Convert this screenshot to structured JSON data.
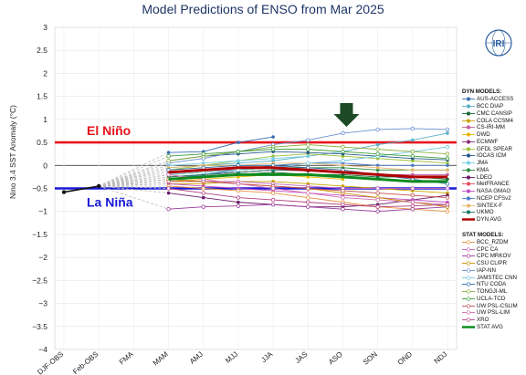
{
  "title": "Model Predictions of ENSO from Mar 2025",
  "chart_data": {
    "type": "line",
    "title": "Model Predictions of ENSO from Mar 2025",
    "ylabel": "Nino 3.4 SST Anomaly (°C)",
    "xlabel": "",
    "ylim": [
      -4,
      3
    ],
    "yticks": [
      "3",
      "2.5",
      "2",
      "1.5",
      "1",
      "0.5",
      "0",
      "−0.5",
      "−1",
      "−1.5",
      "−2",
      "−2.5",
      "−3",
      "−3.5",
      "−4"
    ],
    "categories": [
      "DJF-OBS",
      "Feb-OBS",
      "FMA",
      "MAM",
      "AMJ",
      "MJJ",
      "JJA",
      "JAS",
      "ASO",
      "SON",
      "OND",
      "NDJ"
    ],
    "thresholds": [
      {
        "name": "El Niño",
        "value": 0.5,
        "color": "#e8141b"
      },
      {
        "name": "La Niña",
        "value": -0.5,
        "color": "#1a18d6"
      }
    ],
    "observed": {
      "x": [
        0,
        1
      ],
      "values": [
        -0.58,
        -0.45
      ]
    },
    "dyn_header": "DYN MODELS:",
    "stat_header": "STAT MODELS:",
    "series": [
      {
        "name": "AUS-ACCESS",
        "group": "dyn",
        "color": "#3a6fb0",
        "values": [
          null,
          null,
          null,
          0.28,
          0.3,
          0.5,
          0.62,
          null,
          null,
          null,
          null,
          null
        ]
      },
      {
        "name": "BCC DIAP",
        "group": "dyn",
        "color": "#5ab2c8",
        "values": [
          null,
          null,
          null,
          -0.05,
          0.0,
          0.05,
          0.1,
          0.2,
          0.3,
          0.45,
          0.55,
          0.7
        ]
      },
      {
        "name": "CMC CANSIP",
        "group": "dyn",
        "color": "#1a6b3a",
        "values": [
          null,
          null,
          null,
          -0.3,
          -0.25,
          -0.2,
          -0.15,
          -0.2,
          -0.2,
          -0.25,
          -0.25,
          -0.3
        ]
      },
      {
        "name": "COLA CCSM4",
        "group": "dyn",
        "color": "#c9a400",
        "values": [
          null,
          null,
          null,
          -0.4,
          -0.4,
          -0.35,
          -0.35,
          -0.4,
          -0.45,
          -0.5,
          -0.55,
          -0.6
        ]
      },
      {
        "name": "CS-IRI-MM",
        "group": "dyn",
        "color": "#c060a0",
        "values": [
          null,
          null,
          null,
          -0.15,
          -0.1,
          -0.1,
          -0.05,
          -0.1,
          -0.15,
          -0.2,
          -0.2,
          -0.2
        ]
      },
      {
        "name": "DWD",
        "group": "dyn",
        "color": "#e4b800",
        "values": [
          null,
          null,
          null,
          -0.35,
          -0.3,
          -0.25,
          -0.2,
          -0.25,
          -0.3,
          null,
          null,
          null
        ]
      },
      {
        "name": "ECMWF",
        "group": "dyn",
        "color": "#8a2a7a",
        "values": [
          null,
          null,
          null,
          -0.3,
          -0.2,
          -0.15,
          -0.1,
          -0.12,
          null,
          null,
          null,
          null
        ]
      },
      {
        "name": "GFDL SPEAR",
        "group": "dyn",
        "color": "#9ac23a",
        "values": [
          null,
          null,
          null,
          -0.1,
          0.0,
          0.1,
          0.2,
          0.25,
          0.2,
          0.15,
          0.1,
          0.05
        ]
      },
      {
        "name": "IOCAS ICM",
        "group": "dyn",
        "color": "#2a5a8a",
        "values": [
          null,
          null,
          null,
          0.1,
          0.2,
          0.25,
          0.3,
          0.28,
          0.25,
          0.2,
          0.15,
          0.12
        ]
      },
      {
        "name": "JMA",
        "group": "dyn",
        "color": "#7ad0e8",
        "values": [
          null,
          null,
          null,
          0.0,
          0.05,
          0.1,
          0.15,
          0.2,
          null,
          null,
          null,
          null
        ]
      },
      {
        "name": "KMA",
        "group": "dyn",
        "color": "#2a8a3a",
        "values": [
          null,
          null,
          null,
          -0.2,
          -0.15,
          -0.1,
          -0.05,
          -0.05,
          -0.05,
          -0.1,
          -0.1,
          -0.1
        ]
      },
      {
        "name": "LDEO",
        "group": "dyn",
        "color": "#6a1a6a",
        "values": [
          null,
          null,
          null,
          -0.6,
          -0.7,
          -0.8,
          -0.85,
          -0.9,
          -0.9,
          -0.85,
          -0.75,
          -0.65
        ]
      },
      {
        "name": "MetFRANCE",
        "group": "dyn",
        "color": "#e05060",
        "values": [
          null,
          null,
          null,
          -0.25,
          -0.2,
          -0.15,
          -0.1,
          -0.1,
          null,
          null,
          null,
          null
        ]
      },
      {
        "name": "NASA GMAO",
        "group": "dyn",
        "color": "#c050c0",
        "values": [
          null,
          null,
          null,
          -0.4,
          -0.45,
          -0.5,
          -0.55,
          -0.6,
          -0.65,
          -0.7,
          -0.75,
          -0.8
        ]
      },
      {
        "name": "NCEP CFSv2",
        "group": "dyn",
        "color": "#4a7ac8",
        "values": [
          null,
          null,
          null,
          -0.3,
          -0.2,
          -0.1,
          0.0,
          0.05,
          0.05,
          0.0,
          0.0,
          0.0
        ]
      },
      {
        "name": "SINTEX-F",
        "group": "dyn",
        "color": "#e8b870",
        "values": [
          null,
          null,
          null,
          -0.05,
          0.0,
          0.0,
          0.05,
          0.05,
          0.0,
          -0.05,
          -0.1,
          -0.1
        ]
      },
      {
        "name": "UKMO",
        "group": "dyn",
        "color": "#1a7a6a",
        "values": [
          null,
          null,
          null,
          -0.25,
          -0.2,
          -0.15,
          -0.1,
          -0.1,
          null,
          null,
          null,
          null
        ]
      },
      {
        "name": "DYN AVG",
        "group": "dyn",
        "avg": true,
        "color": "#b00000",
        "values": [
          null,
          null,
          null,
          -0.15,
          -0.1,
          -0.05,
          -0.05,
          -0.1,
          -0.15,
          -0.2,
          -0.25,
          -0.25
        ]
      },
      {
        "name": "BCC_RZDM",
        "group": "stat",
        "color": "#e89040",
        "values": [
          null,
          null,
          null,
          -0.45,
          -0.5,
          -0.55,
          -0.6,
          -0.7,
          -0.8,
          -0.9,
          -0.95,
          -1.0
        ]
      },
      {
        "name": "CPC CA",
        "group": "stat",
        "color": "#c060c0",
        "values": [
          null,
          null,
          null,
          -0.3,
          -0.35,
          -0.35,
          -0.4,
          -0.45,
          -0.5,
          -0.5,
          -0.5,
          -0.5
        ]
      },
      {
        "name": "CPC MRKOV",
        "group": "stat",
        "color": "#9a3a9a",
        "values": [
          null,
          null,
          null,
          -0.95,
          -0.9,
          -0.88,
          -0.85,
          -0.9,
          -0.95,
          -1.0,
          -0.95,
          -0.9
        ]
      },
      {
        "name": "CSU CLIPR",
        "group": "stat",
        "color": "#c89000",
        "values": [
          null,
          null,
          null,
          -0.3,
          -0.35,
          -0.4,
          -0.45,
          -0.5,
          -0.6,
          -0.7,
          -0.8,
          -0.9
        ]
      },
      {
        "name": "IAP-NN",
        "group": "stat",
        "color": "#6a90d0",
        "values": [
          null,
          null,
          null,
          0.05,
          0.15,
          0.3,
          0.45,
          0.55,
          0.7,
          0.78,
          0.8,
          0.78
        ]
      },
      {
        "name": "JAMSTEC CNN",
        "group": "stat",
        "color": "#70c8d8",
        "values": [
          null,
          null,
          null,
          -0.2,
          -0.15,
          -0.1,
          -0.05,
          0.05,
          0.1,
          0.2,
          0.3,
          0.4
        ]
      },
      {
        "name": "NTU CODA",
        "group": "stat",
        "color": "#2a6aa0",
        "values": [
          null,
          null,
          null,
          -0.1,
          -0.05,
          0.0,
          0.0,
          -0.05,
          -0.1,
          -0.2,
          -0.3,
          -0.4
        ]
      },
      {
        "name": "TONGJI-ML",
        "group": "stat",
        "color": "#8ab040",
        "values": [
          null,
          null,
          null,
          0.1,
          0.2,
          0.3,
          0.4,
          0.45,
          0.4,
          0.35,
          0.3,
          0.25
        ]
      },
      {
        "name": "UCLA-TCD",
        "group": "stat",
        "color": "#3a9a3a",
        "values": [
          null,
          null,
          null,
          0.2,
          0.25,
          0.3,
          0.35,
          0.35,
          0.3,
          0.25,
          0.2,
          0.15
        ]
      },
      {
        "name": "UW PSL-CSLIM",
        "group": "stat",
        "color": "#c05050",
        "values": [
          null,
          null,
          null,
          -0.35,
          -0.35,
          -0.4,
          -0.45,
          -0.5,
          -0.55,
          -0.6,
          -0.65,
          -0.7
        ]
      },
      {
        "name": "UW PSL-LIM",
        "group": "stat",
        "color": "#d070b0",
        "values": [
          null,
          null,
          null,
          -0.2,
          -0.3,
          -0.4,
          -0.5,
          -0.6,
          -0.7,
          -0.75,
          -0.8,
          -0.85
        ]
      },
      {
        "name": "XRO",
        "group": "stat",
        "color": "#b04080",
        "values": [
          null,
          null,
          null,
          -0.5,
          -0.6,
          -0.7,
          -0.75,
          -0.8,
          -0.85,
          -0.9,
          -0.88,
          -0.85
        ]
      },
      {
        "name": "STAT AVG",
        "group": "stat",
        "avg": true,
        "color": "#0e8a1e",
        "values": [
          null,
          null,
          null,
          -0.3,
          -0.25,
          -0.2,
          -0.2,
          -0.2,
          -0.25,
          -0.3,
          -0.35,
          -0.35
        ]
      }
    ],
    "grid": true,
    "legend": "right"
  },
  "logo_text": "IRI",
  "colors": {
    "el_nino": "#e8141b",
    "la_nina": "#1a18d6",
    "title": "#1e3566",
    "arrow": "#1d4a26",
    "logo": "#2b5d9e"
  }
}
